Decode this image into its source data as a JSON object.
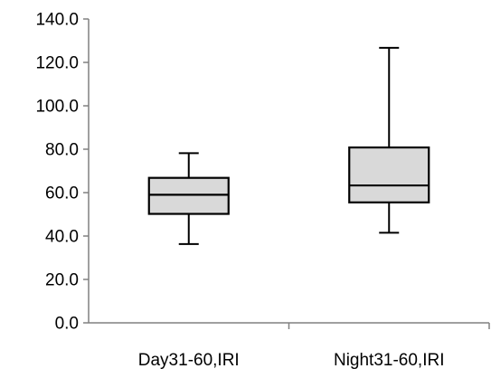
{
  "chart_data": {
    "type": "box",
    "title": "",
    "xlabel": "",
    "ylabel": "",
    "ylim": [
      0,
      140
    ],
    "yticks": [
      0,
      20,
      40,
      60,
      80,
      100,
      120,
      140
    ],
    "ytick_labels": [
      "0.0",
      "20.0",
      "40.0",
      "60.0",
      "80.0",
      "100.0",
      "120.0",
      "140.0"
    ],
    "categories": [
      "Day31-60,IRI",
      "Night31-60,IRI"
    ],
    "boxes": [
      {
        "category": "Day31-60,IRI",
        "whisker_low": 36.3,
        "q1": 50.2,
        "median": 59.0,
        "q3": 66.8,
        "whisker_high": 78.2
      },
      {
        "category": "Night31-60,IRI",
        "whisker_low": 41.5,
        "q1": 55.5,
        "median": 63.3,
        "q3": 80.8,
        "whisker_high": 126.7
      }
    ],
    "grid": false,
    "legend": "none",
    "colors": {
      "box_fill": "#d9d9d9",
      "stroke": "#000000",
      "axis": "#808080"
    }
  }
}
